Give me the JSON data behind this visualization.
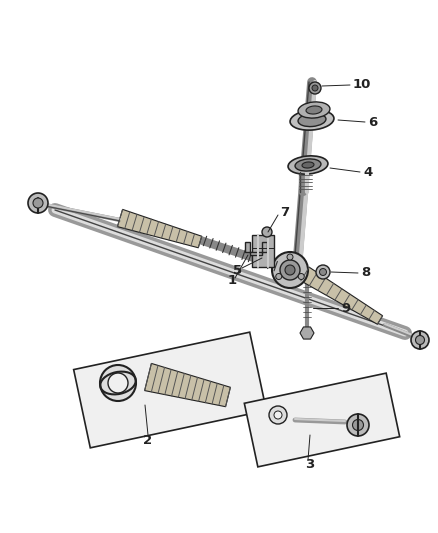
{
  "background_color": "#ffffff",
  "fig_width": 4.38,
  "fig_height": 5.33,
  "dpi": 100,
  "dark": "#222222",
  "mid": "#777777",
  "light": "#bbbbbb",
  "tan": "#c8c0a8",
  "steel": "#a0a0a0"
}
